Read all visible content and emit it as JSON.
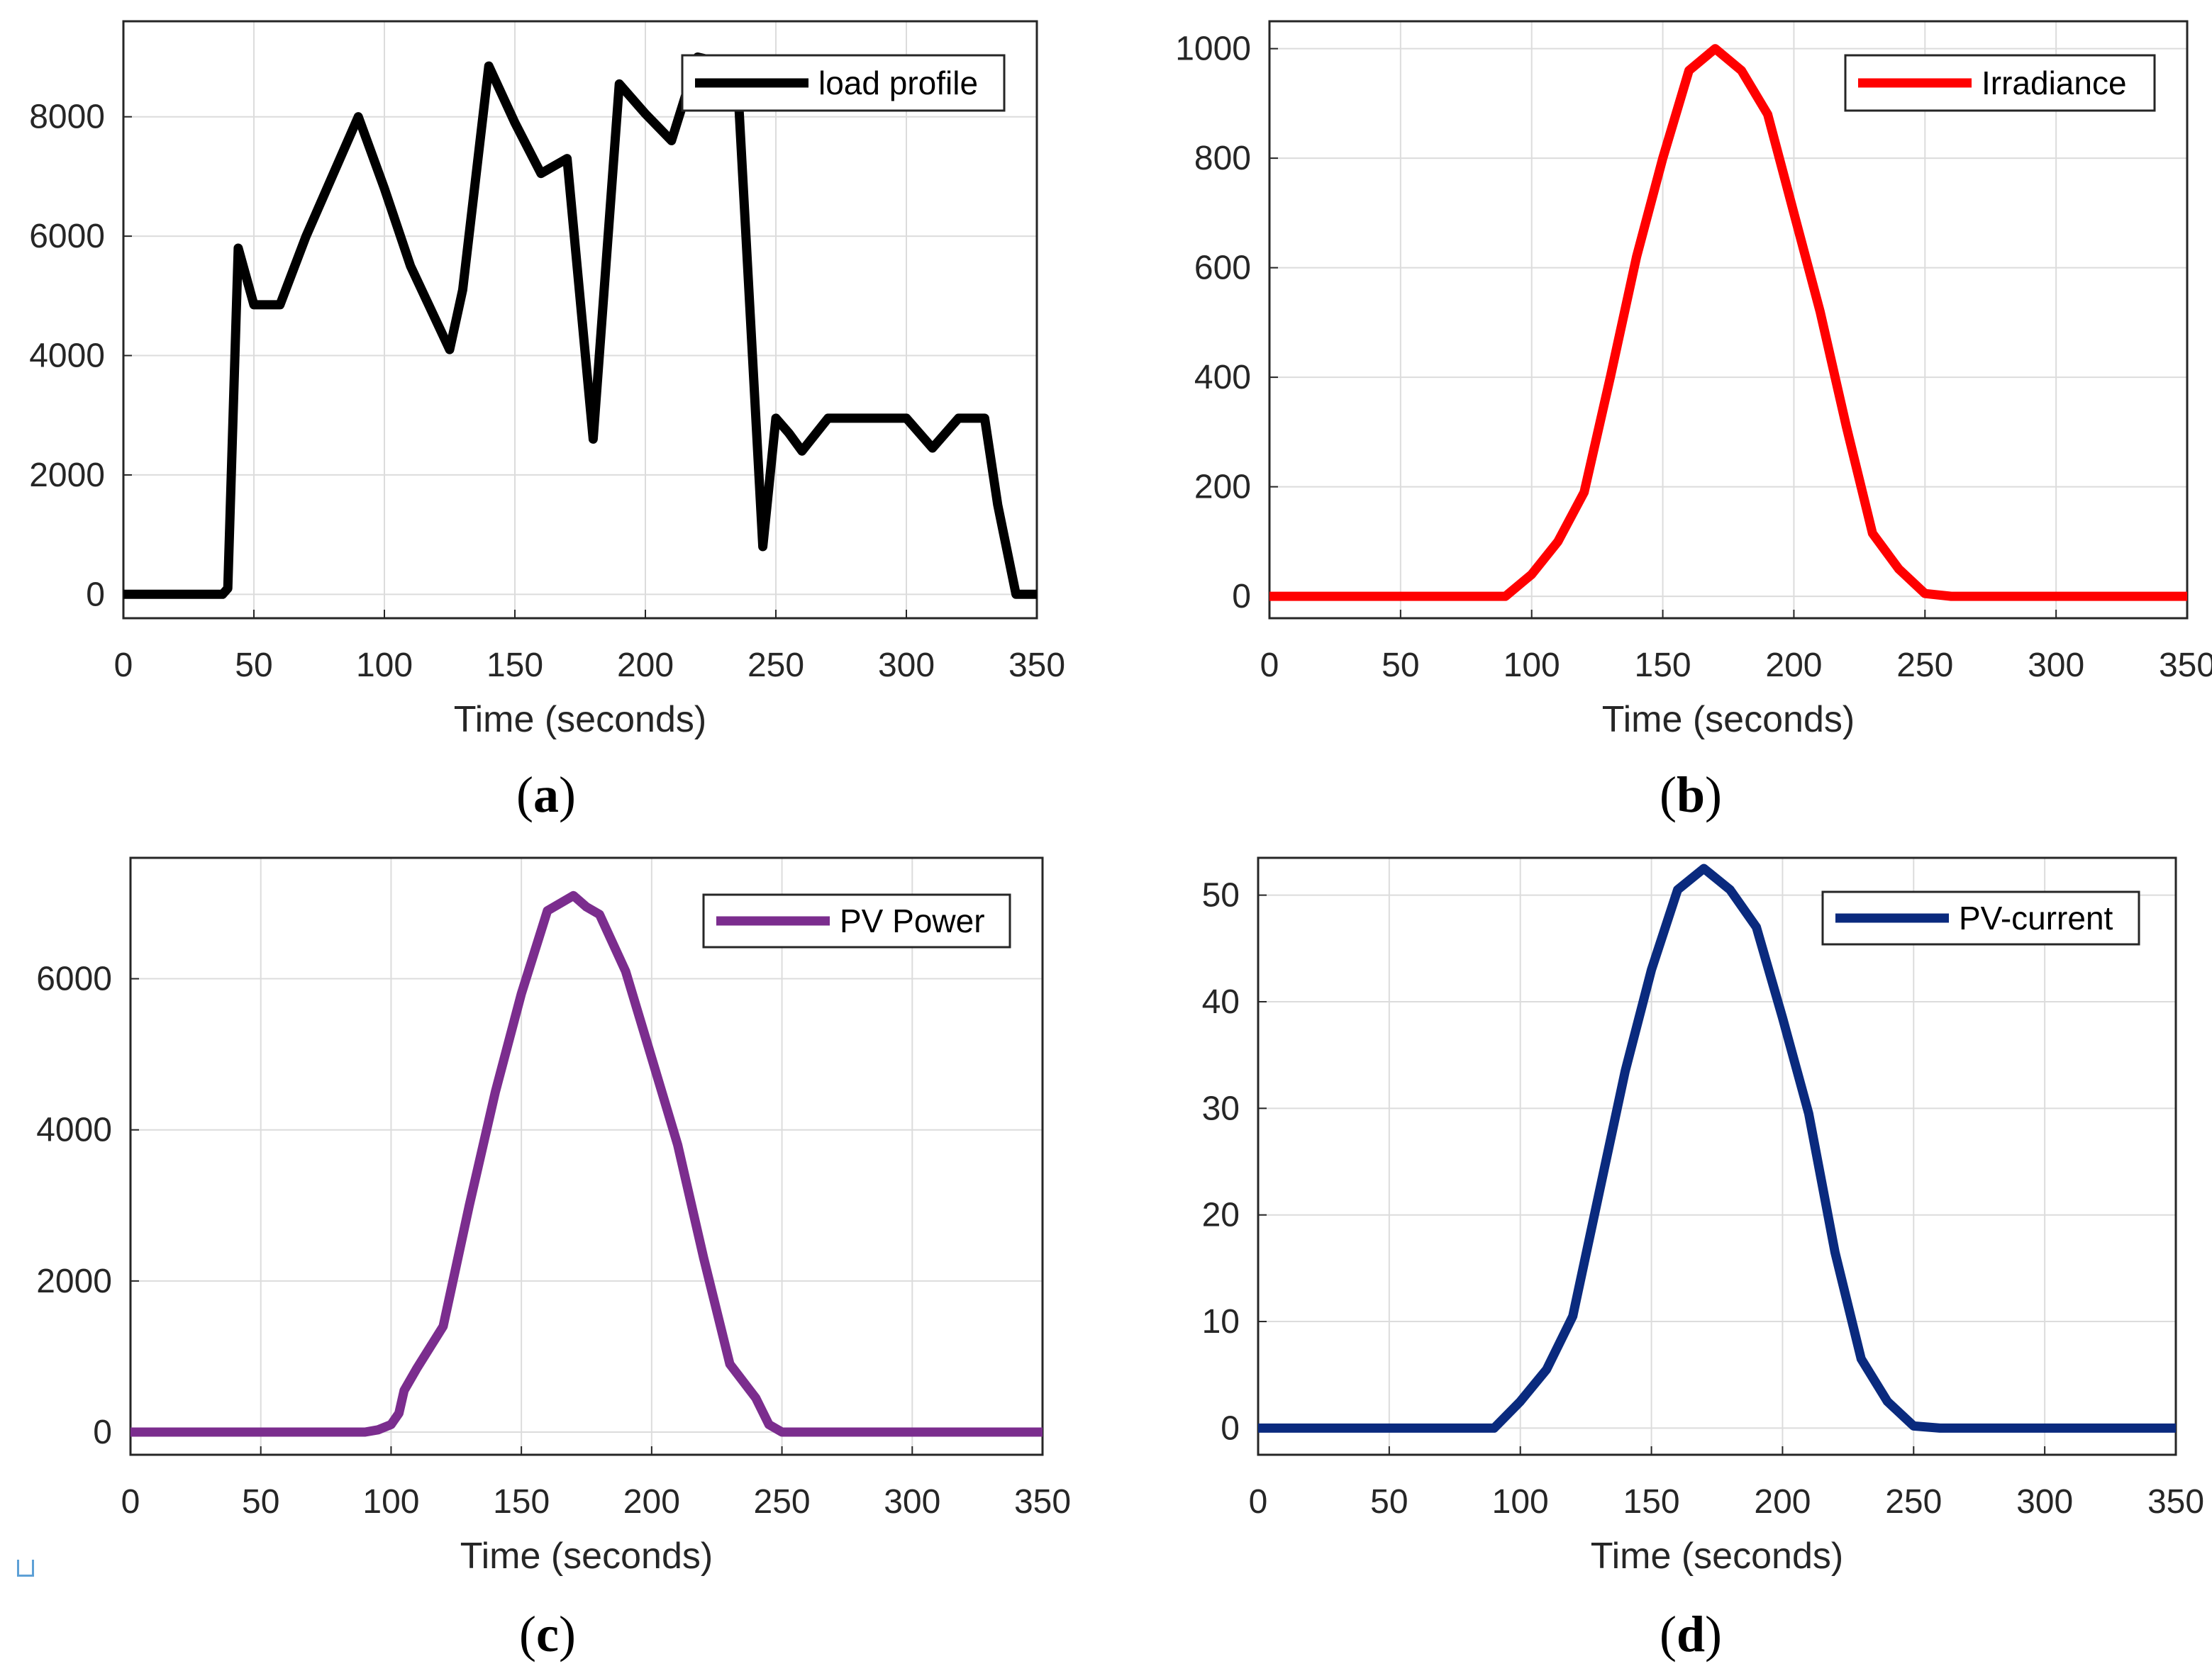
{
  "chart_data": [
    {
      "type": "line",
      "panel": "a",
      "panel_label": "a",
      "xlabel": "Time (seconds)",
      "ylabel": "",
      "xlim": [
        0,
        350
      ],
      "ylim": [
        -400,
        9600
      ],
      "xticks": [
        0,
        50,
        100,
        150,
        200,
        250,
        300,
        350
      ],
      "yticks": [
        0,
        2000,
        4000,
        6000,
        8000
      ],
      "grid": true,
      "legend": "top-right",
      "series": [
        {
          "name": "load profile",
          "color": "#000000",
          "x": [
            0,
            38,
            40,
            44,
            50,
            60,
            70,
            90,
            100,
            110,
            125,
            130,
            140,
            150,
            160,
            170,
            180,
            190,
            200,
            210,
            220,
            230,
            235,
            245,
            250,
            255,
            260,
            270,
            280,
            290,
            300,
            310,
            320,
            325,
            330,
            335,
            342,
            350
          ],
          "y": [
            0,
            0,
            100,
            5800,
            4850,
            4850,
            6000,
            8000,
            6800,
            5500,
            4100,
            5100,
            8850,
            7900,
            7050,
            7300,
            2600,
            8550,
            8050,
            7600,
            9000,
            8900,
            8850,
            800,
            2950,
            2700,
            2400,
            2950,
            2950,
            2950,
            2950,
            2450,
            2950,
            2950,
            2950,
            1500,
            0,
            0
          ]
        }
      ]
    },
    {
      "type": "line",
      "panel": "b",
      "panel_label": "b",
      "xlabel": "Time (seconds)",
      "ylabel": "",
      "xlim": [
        0,
        350
      ],
      "ylim": [
        -40,
        1050
      ],
      "xticks": [
        0,
        50,
        100,
        150,
        200,
        250,
        300,
        350
      ],
      "yticks": [
        0,
        200,
        400,
        600,
        800,
        1000
      ],
      "grid": true,
      "legend": "top-right",
      "series": [
        {
          "name": "Irradiance",
          "color": "#ff0000",
          "x": [
            0,
            50,
            90,
            100,
            110,
            120,
            130,
            140,
            150,
            160,
            170,
            180,
            190,
            200,
            210,
            220,
            230,
            240,
            250,
            260,
            300,
            350
          ],
          "y": [
            0,
            0,
            0,
            40,
            100,
            190,
            400,
            620,
            800,
            960,
            1000,
            960,
            880,
            700,
            520,
            310,
            115,
            50,
            5,
            0,
            0,
            0
          ]
        }
      ]
    },
    {
      "type": "line",
      "panel": "c",
      "panel_label": "c",
      "xlabel": "Time (seconds)",
      "ylabel": "",
      "xlim": [
        0,
        350
      ],
      "ylim": [
        -300,
        7600
      ],
      "xticks": [
        0,
        50,
        100,
        150,
        200,
        250,
        300,
        350
      ],
      "yticks": [
        0,
        2000,
        4000,
        6000
      ],
      "grid": true,
      "legend": "top-right",
      "series": [
        {
          "name": "PV Power",
          "color": "#7b2d8e",
          "x": [
            0,
            50,
            90,
            95,
            100,
            103,
            105,
            110,
            120,
            130,
            140,
            150,
            160,
            170,
            175,
            180,
            190,
            200,
            210,
            220,
            230,
            240,
            245,
            250,
            260,
            300,
            350
          ],
          "y": [
            0,
            0,
            0,
            30,
            100,
            250,
            550,
            850,
            1400,
            3000,
            4500,
            5800,
            6900,
            7100,
            6950,
            6850,
            6100,
            4950,
            3800,
            2300,
            900,
            450,
            100,
            0,
            0,
            0,
            0
          ]
        }
      ]
    },
    {
      "type": "line",
      "panel": "d",
      "panel_label": "d",
      "xlabel": "Time (seconds)",
      "ylabel": "",
      "xlim": [
        0,
        350
      ],
      "ylim": [
        -2.5,
        53.5
      ],
      "xticks": [
        0,
        50,
        100,
        150,
        200,
        250,
        300,
        350
      ],
      "yticks": [
        0,
        10,
        20,
        30,
        40,
        50
      ],
      "grid": true,
      "legend": "top-right",
      "series": [
        {
          "name": "PV-current",
          "color": "#0a2a7e",
          "x": [
            0,
            50,
            90,
            100,
            110,
            120,
            130,
            140,
            150,
            160,
            170,
            180,
            190,
            200,
            210,
            220,
            230,
            240,
            250,
            260,
            300,
            350
          ],
          "y": [
            0,
            0,
            0,
            2.5,
            5.5,
            10.5,
            22,
            33.5,
            43,
            50.5,
            52.5,
            50.5,
            47,
            38.5,
            29.5,
            16.5,
            6.5,
            2.5,
            0.2,
            0,
            0,
            0
          ]
        }
      ]
    }
  ]
}
